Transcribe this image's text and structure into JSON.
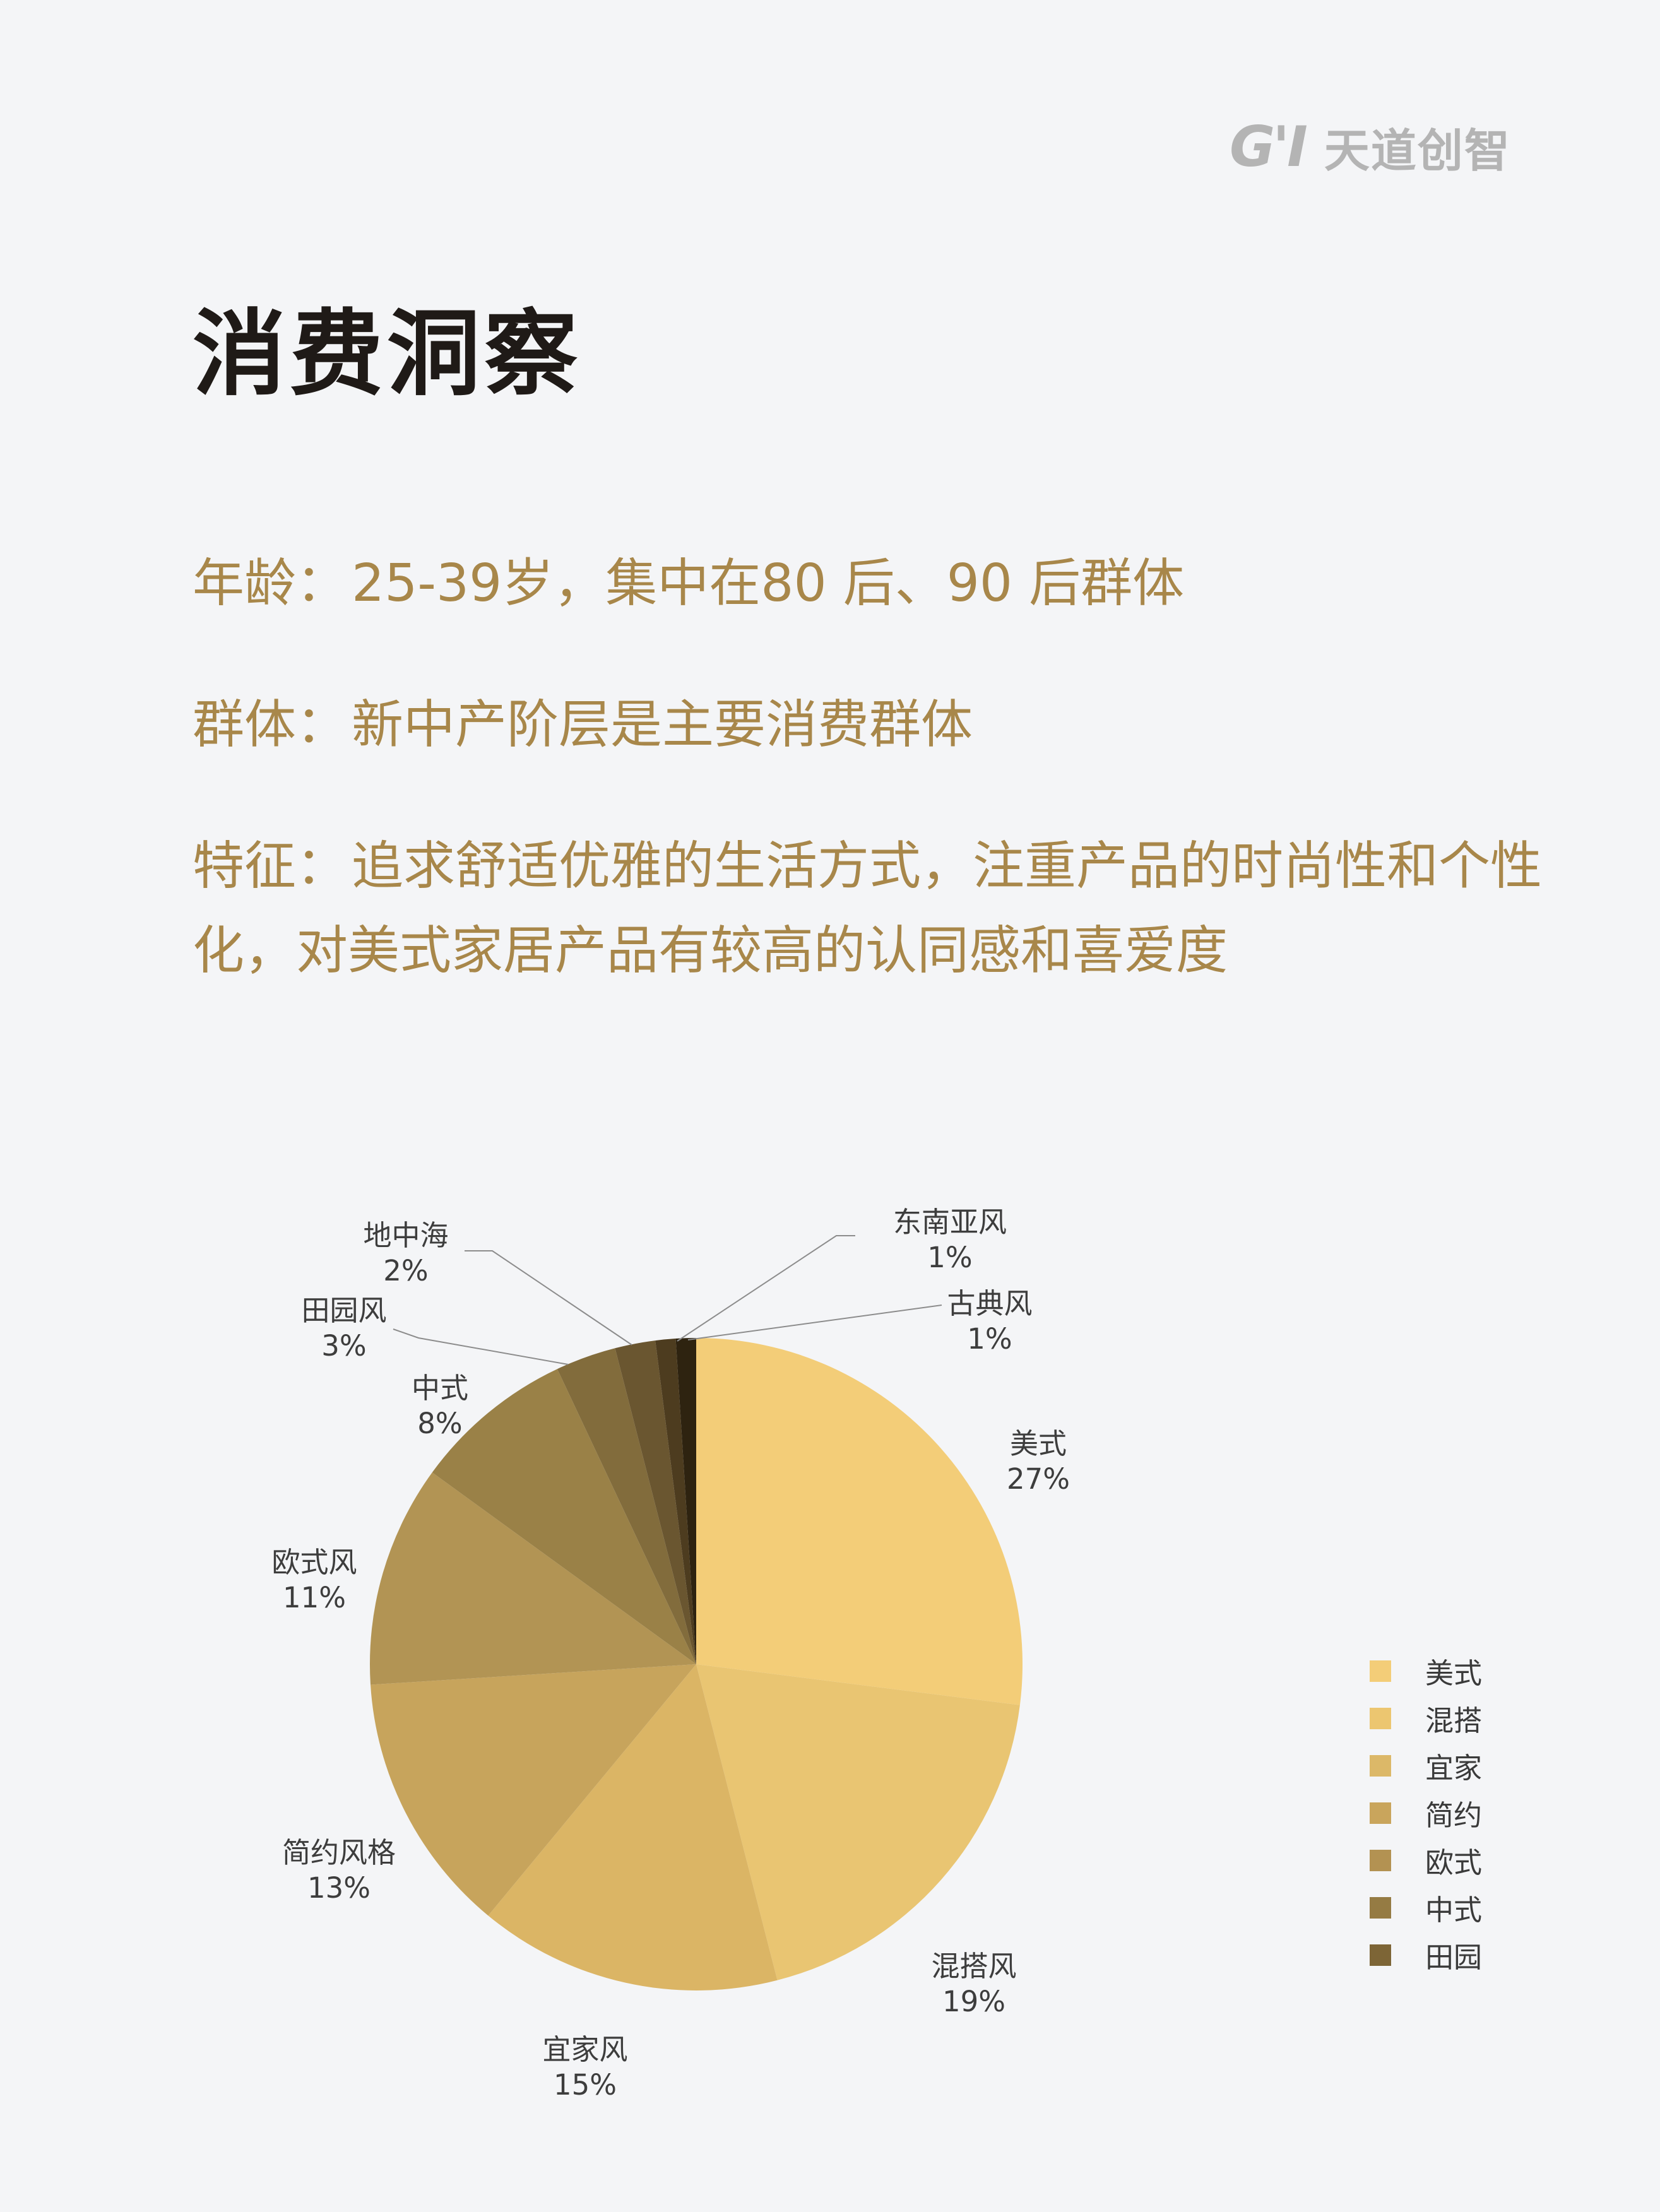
{
  "brand": {
    "mark": "G'I",
    "name": "天道创智"
  },
  "page_title": "消费洞察",
  "info": {
    "age": {
      "label": "年龄",
      "colon": "：",
      "text": "25-39岁，集中在80 后、90 后群体"
    },
    "group": {
      "label": "群体",
      "colon": "：",
      "text": "新中产阶层是主要消费群体"
    },
    "feature": {
      "label": "特征",
      "colon": "：",
      "text": "追求舒适优雅的生活方式，注重产品的时尚性和个性化，对美式家居产品有较高的认同感和喜爱度"
    }
  },
  "chart_data": {
    "type": "pie",
    "start": "12 o'clock, clockwise",
    "slices": [
      {
        "label": "美式",
        "pct_label": "27%",
        "value": 27,
        "color": "#f3cd78"
      },
      {
        "label": "混搭风",
        "pct_label": "19%",
        "value": 19,
        "color": "#e9c572"
      },
      {
        "label": "宜家风",
        "pct_label": "15%",
        "value": 15,
        "color": "#dbb565"
      },
      {
        "label": "简约风格",
        "pct_label": "13%",
        "value": 13,
        "color": "#c7a45c"
      },
      {
        "label": "欧式风",
        "pct_label": "11%",
        "value": 11,
        "color": "#b29454"
      },
      {
        "label": "中式",
        "pct_label": "8%",
        "value": 8,
        "color": "#9a8147"
      },
      {
        "label": "田园风",
        "pct_label": "3%",
        "value": 3,
        "color": "#826c3c"
      },
      {
        "label": "地中海",
        "pct_label": "2%",
        "value": 2,
        "color": "#6a5630"
      },
      {
        "label": "东南亚风",
        "pct_label": "1%",
        "value": 1,
        "color": "#4d3c1f"
      },
      {
        "label": "古典风",
        "pct_label": "1%",
        "value": 1,
        "color": "#2e2310"
      }
    ],
    "legend": {
      "placement": "right",
      "items": [
        {
          "label": "美式",
          "color": "#f3cd78"
        },
        {
          "label": "混搭",
          "color": "#ecc670"
        },
        {
          "label": "宜家",
          "color": "#dcb868"
        },
        {
          "label": "简约",
          "color": "#c9a55c"
        },
        {
          "label": "欧式",
          "color": "#b39252"
        },
        {
          "label": "中式",
          "color": "#957b43"
        },
        {
          "label": "田园",
          "color": "#7d6536"
        }
      ]
    },
    "leader_color": "#8c8c8c",
    "label_color": "#3d3d3d"
  }
}
